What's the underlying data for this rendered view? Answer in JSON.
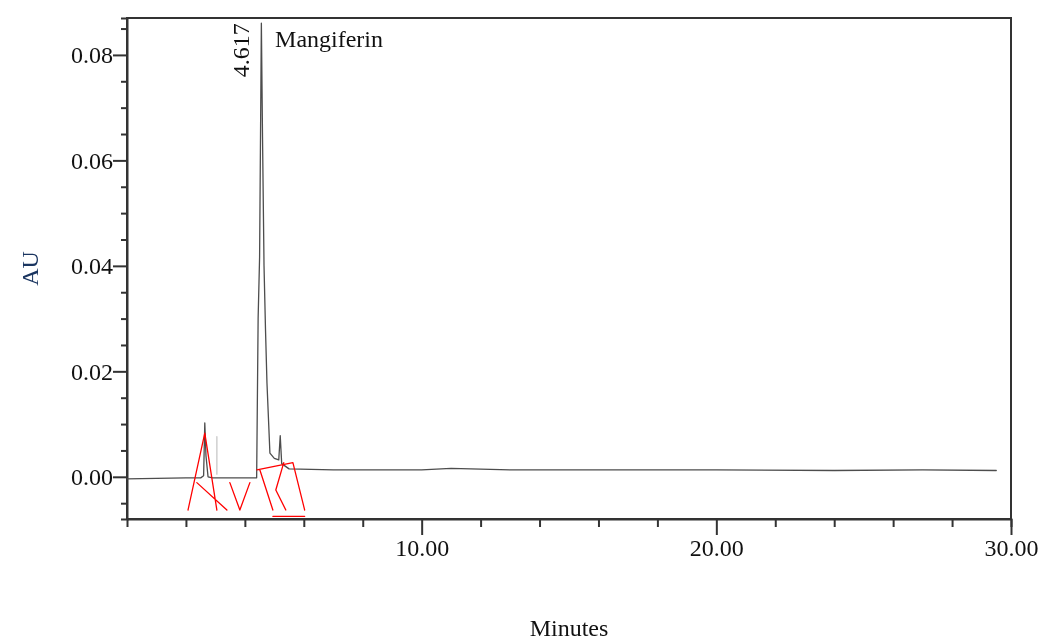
{
  "chart_data": {
    "type": "line",
    "xlabel": "Minutes",
    "ylabel": "AU",
    "xlim": [
      0,
      30
    ],
    "ylim": [
      -0.008,
      0.087
    ],
    "xticks": [
      {
        "value": 2,
        "label": null
      },
      {
        "value": 4,
        "label": null
      },
      {
        "value": 6,
        "label": null
      },
      {
        "value": 8,
        "label": null
      },
      {
        "value": 10,
        "label": "10.00"
      },
      {
        "value": 12,
        "label": null
      },
      {
        "value": 14,
        "label": null
      },
      {
        "value": 16,
        "label": null
      },
      {
        "value": 18,
        "label": null
      },
      {
        "value": 20,
        "label": "20.00"
      },
      {
        "value": 22,
        "label": null
      },
      {
        "value": 24,
        "label": null
      },
      {
        "value": 26,
        "label": null
      },
      {
        "value": 28,
        "label": null
      },
      {
        "value": 30,
        "label": "30.00"
      }
    ],
    "yticks": [
      {
        "value": -0.005,
        "label": null
      },
      {
        "value": 0,
        "label": "0.00"
      },
      {
        "value": 0.005,
        "label": null
      },
      {
        "value": 0.01,
        "label": null
      },
      {
        "value": 0.015,
        "label": null
      },
      {
        "value": 0.02,
        "label": "0.02"
      },
      {
        "value": 0.025,
        "label": null
      },
      {
        "value": 0.03,
        "label": null
      },
      {
        "value": 0.035,
        "label": null
      },
      {
        "value": 0.04,
        "label": "0.04"
      },
      {
        "value": 0.045,
        "label": null
      },
      {
        "value": 0.05,
        "label": null
      },
      {
        "value": 0.055,
        "label": null
      },
      {
        "value": 0.06,
        "label": "0.06"
      },
      {
        "value": 0.065,
        "label": null
      },
      {
        "value": 0.07,
        "label": null
      },
      {
        "value": 0.075,
        "label": null
      },
      {
        "value": 0.08,
        "label": "0.08"
      },
      {
        "value": 0.085,
        "label": null
      }
    ],
    "series": [
      {
        "color": "#4d4d4d",
        "x": [
          0,
          1,
          2,
          2.5,
          2.6,
          2.64,
          2.68,
          2.75,
          2.9,
          3.2,
          4,
          4.4,
          4.45,
          4.5,
          4.56,
          4.6,
          4.65,
          4.7,
          4.75,
          4.85,
          5,
          5.15,
          5.2,
          5.25,
          5.5,
          7,
          10,
          11,
          13,
          16,
          20,
          24,
          27,
          29.5
        ],
        "values": [
          -0.0004,
          -0.0003,
          -0.0002,
          -0.0002,
          0.0002,
          0.0102,
          0.004,
          0.0,
          -0.0002,
          -0.0002,
          -0.0002,
          -0.0002,
          0.03,
          0.0417,
          0.086,
          0.064,
          0.04,
          0.028,
          0.0178,
          0.0045,
          0.0035,
          0.0032,
          0.0078,
          0.0025,
          0.0015,
          0.0013,
          0.0013,
          0.0016,
          0.0013,
          0.0013,
          0.0013,
          0.0012,
          0.0013,
          0.0012
        ]
      },
      {
        "color": "#c8c8c8",
        "x": [
          3.05,
          3.05
        ],
        "values": [
          0.0005,
          0.0076
        ]
      },
      {
        "color": "#ff0000",
        "x": [
          2.07,
          2.64,
          3.05,
          null,
          2.37,
          3.39,
          null,
          3.49,
          3.83,
          4.17,
          null,
          4.41,
          5.63,
          6.03,
          null,
          4.51,
          4.95,
          null,
          5.32,
          5.05,
          5.39,
          null,
          4.95,
          6.03
        ],
        "values": [
          -0.0063,
          0.0083,
          -0.0063,
          null,
          -0.0011,
          -0.0063,
          null,
          -0.0011,
          -0.0063,
          -0.0011,
          null,
          0.0013,
          0.0027,
          -0.0063,
          null,
          0.0013,
          -0.0063,
          null,
          0.0027,
          -0.0025,
          -0.0063,
          null,
          -0.0075,
          -0.0075
        ]
      }
    ],
    "annotations": [
      {
        "text": "4.617",
        "x": 4.617,
        "y": 0.086
      },
      {
        "text": "Mangiferin",
        "x": 4.617,
        "y": 0.086
      }
    ]
  }
}
